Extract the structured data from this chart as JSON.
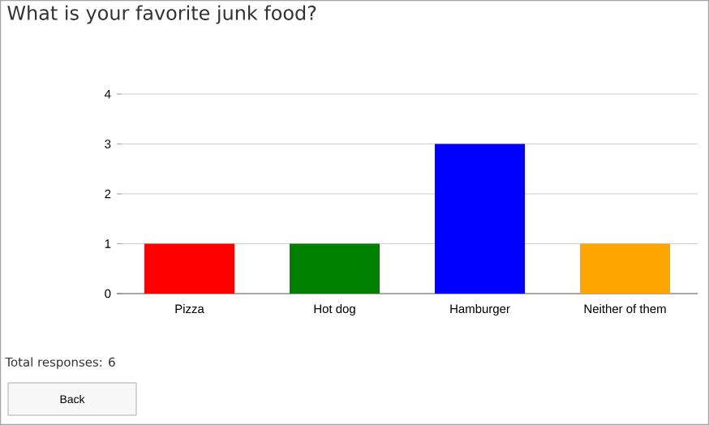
{
  "chart_data": {
    "type": "bar",
    "title": "What is your favorite junk food?",
    "categories": [
      "Pizza",
      "Hot dog",
      "Hamburger",
      "Neither of them"
    ],
    "values": [
      1,
      1,
      3,
      1
    ],
    "colors": [
      "#ff0000",
      "#008000",
      "#0000ff",
      "#ffa500"
    ],
    "ylim": [
      0,
      4
    ],
    "yticks": [
      0,
      1,
      2,
      3,
      4
    ],
    "grid": "y",
    "annotations": [
      "Total responses: 6",
      "Back"
    ]
  }
}
